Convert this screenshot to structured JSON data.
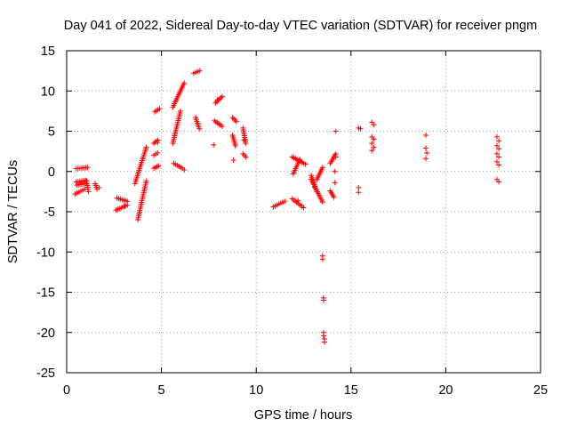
{
  "chart_data": {
    "type": "scatter",
    "title": "Day 041 of 2022, Sidereal Day-to-day VTEC variation (SDTVAR) for receiver pngm",
    "xlabel": "GPS time / hours",
    "ylabel": "SDTVAR / TECUs",
    "xlim": [
      0,
      25
    ],
    "ylim": [
      -25,
      15
    ],
    "xticks": [
      0,
      5,
      10,
      15,
      20,
      25
    ],
    "yticks": [
      15,
      10,
      5,
      0,
      -5,
      -10,
      -15,
      -20,
      -25
    ],
    "grid": true,
    "marker": "+",
    "colors": {
      "points": "#ff0000",
      "grid": "#a0a0a0",
      "axis": "#000000"
    },
    "series": [
      {
        "name": "SDTVAR",
        "segments": [
          {
            "x": [
              0.45,
              0.95
            ],
            "y": [
              -2.8,
              -2.2
            ]
          },
          {
            "x": [
              0.5,
              1.0
            ],
            "y": [
              -1.3,
              -1.1
            ]
          },
          {
            "x": [
              0.5,
              1.1
            ],
            "y": [
              0.35,
              0.5
            ]
          },
          {
            "x": [
              0.55,
              1.05
            ],
            "y": [
              -1.7,
              -1.5
            ]
          },
          {
            "x": [
              1.05,
              1.15
            ],
            "y": [
              -1.2,
              -2.5
            ]
          },
          {
            "x": [
              1.5,
              1.6
            ],
            "y": [
              -1.5,
              -2.2
            ]
          },
          {
            "x": [
              2.6,
              3.2
            ],
            "y": [
              -4.8,
              -4.2
            ]
          },
          {
            "x": [
              2.65,
              3.2
            ],
            "y": [
              -3.3,
              -3.7
            ]
          },
          {
            "x": [
              3.75,
              4.2
            ],
            "y": [
              -6.0,
              -1.2
            ]
          },
          {
            "x": [
              3.6,
              4.2
            ],
            "y": [
              -1.5,
              3.0
            ]
          },
          {
            "x": [
              4.65,
              4.9
            ],
            "y": [
              7.4,
              7.8
            ]
          },
          {
            "x": [
              4.6,
              4.8
            ],
            "y": [
              3.5,
              3.9
            ]
          },
          {
            "x": [
              4.6,
              4.8
            ],
            "y": [
              2.0,
              2.3
            ]
          },
          {
            "x": [
              4.6,
              4.85
            ],
            "y": [
              0.4,
              0.7
            ]
          },
          {
            "x": [
              5.6,
              6.0
            ],
            "y": [
              3.5,
              7.5
            ]
          },
          {
            "x": [
              5.6,
              6.2
            ],
            "y": [
              8.0,
              11.0
            ]
          },
          {
            "x": [
              5.65,
              6.1
            ],
            "y": [
              1.0,
              0.4
            ]
          },
          {
            "x": [
              6.7,
              7.0
            ],
            "y": [
              12.2,
              12.5
            ]
          },
          {
            "x": [
              6.8,
              7.0
            ],
            "y": [
              6.7,
              5.3
            ]
          },
          {
            "x": [
              7.85,
              8.2
            ],
            "y": [
              8.5,
              9.3
            ]
          },
          {
            "x": [
              7.8,
              8.2
            ],
            "y": [
              6.3,
              5.6
            ]
          },
          {
            "x": [
              8.75,
              8.95
            ],
            "y": [
              6.7,
              6.2
            ]
          },
          {
            "x": [
              8.75,
              8.9
            ],
            "y": [
              4.5,
              3.2
            ]
          },
          {
            "x": [
              9.3,
              9.45
            ],
            "y": [
              5.4,
              3.5
            ]
          },
          {
            "x": [
              9.3,
              9.45
            ],
            "y": [
              2.2,
              1.8
            ]
          },
          {
            "x": [
              10.9,
              11.5
            ],
            "y": [
              -4.4,
              -3.7
            ]
          },
          {
            "x": [
              11.9,
              12.5
            ],
            "y": [
              -3.4,
              -4.5
            ]
          },
          {
            "x": [
              11.9,
              12.6
            ],
            "y": [
              1.8,
              0.9
            ]
          },
          {
            "x": [
              11.95,
              12.3
            ],
            "y": [
              -0.3,
              1.5
            ]
          },
          {
            "x": [
              12.9,
              13.5
            ],
            "y": [
              -1.0,
              -3.8
            ]
          },
          {
            "x": [
              12.9,
              13.2
            ],
            "y": [
              -0.5,
              -2.5
            ]
          },
          {
            "x": [
              13.2,
              13.5
            ],
            "y": [
              -1.0,
              0.5
            ]
          },
          {
            "x": [
              13.9,
              14.2
            ],
            "y": [
              1.0,
              2.2
            ]
          },
          {
            "x": [
              13.9,
              14.1
            ],
            "y": [
              -2.4,
              -3.2
            ]
          }
        ],
        "points": [
          [
            1.7,
            -2.0
          ],
          [
            3.05,
            -4.3
          ],
          [
            4.8,
            3.6
          ],
          [
            6.2,
            0.2
          ],
          [
            7.75,
            3.3
          ],
          [
            7.95,
            8.9
          ],
          [
            8.8,
            1.4
          ],
          [
            9.35,
            3.9
          ],
          [
            12.2,
            -3.6
          ],
          [
            13.1,
            -2.0
          ],
          [
            13.5,
            -10.5
          ],
          [
            13.5,
            -10.9
          ],
          [
            13.55,
            -15.7
          ],
          [
            13.55,
            -16.0
          ],
          [
            13.55,
            -20.0
          ],
          [
            13.55,
            -20.4
          ],
          [
            13.6,
            -20.8
          ],
          [
            13.6,
            -21.2
          ],
          [
            14.2,
            5.0
          ],
          [
            14.2,
            1.8
          ],
          [
            14.15,
            0.0
          ],
          [
            14.15,
            -1.4
          ],
          [
            15.4,
            5.4
          ],
          [
            15.5,
            5.3
          ],
          [
            15.4,
            -2.0
          ],
          [
            15.4,
            -2.6
          ],
          [
            16.1,
            6.1
          ],
          [
            16.2,
            5.8
          ],
          [
            16.1,
            4.3
          ],
          [
            16.2,
            4.0
          ],
          [
            16.1,
            3.5
          ],
          [
            16.2,
            3.0
          ],
          [
            16.1,
            2.6
          ],
          [
            18.95,
            4.5
          ],
          [
            18.95,
            2.9
          ],
          [
            19.0,
            2.3
          ],
          [
            18.95,
            1.6
          ],
          [
            22.7,
            4.3
          ],
          [
            22.8,
            3.8
          ],
          [
            22.7,
            3.2
          ],
          [
            22.8,
            2.8
          ],
          [
            22.7,
            2.2
          ],
          [
            22.8,
            1.8
          ],
          [
            22.7,
            1.2
          ],
          [
            22.8,
            0.8
          ],
          [
            22.7,
            -1.0
          ],
          [
            22.8,
            -1.3
          ]
        ]
      }
    ]
  }
}
